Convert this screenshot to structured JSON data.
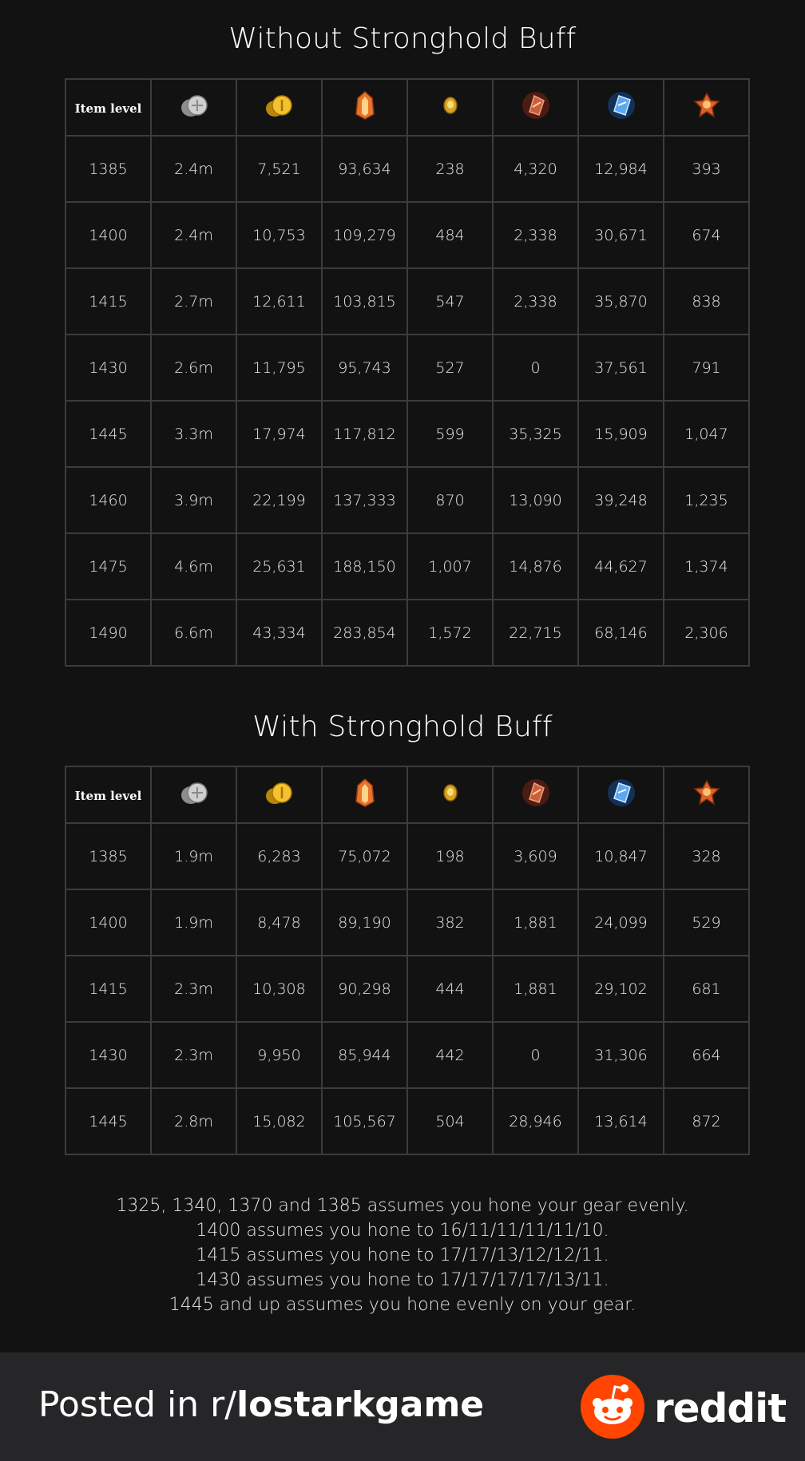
{
  "sections": [
    {
      "title": "Without Stronghold Buff",
      "header_label": "Item level",
      "icons": [
        "silver-coins-icon",
        "gold-coins-icon",
        "shard-pouch-icon",
        "leapstone-icon",
        "destruction-stone-icon",
        "guardian-stone-icon",
        "fusion-material-icon"
      ],
      "rows": [
        [
          "1385",
          "2.4m",
          "7,521",
          "93,634",
          "238",
          "4,320",
          "12,984",
          "393"
        ],
        [
          "1400",
          "2.4m",
          "10,753",
          "109,279",
          "484",
          "2,338",
          "30,671",
          "674"
        ],
        [
          "1415",
          "2.7m",
          "12,611",
          "103,815",
          "547",
          "2,338",
          "35,870",
          "838"
        ],
        [
          "1430",
          "2.6m",
          "11,795",
          "95,743",
          "527",
          "0",
          "37,561",
          "791"
        ],
        [
          "1445",
          "3.3m",
          "17,974",
          "117,812",
          "599",
          "35,325",
          "15,909",
          "1,047"
        ],
        [
          "1460",
          "3.9m",
          "22,199",
          "137,333",
          "870",
          "13,090",
          "39,248",
          "1,235"
        ],
        [
          "1475",
          "4.6m",
          "25,631",
          "188,150",
          "1,007",
          "14,876",
          "44,627",
          "1,374"
        ],
        [
          "1490",
          "6.6m",
          "43,334",
          "283,854",
          "1,572",
          "22,715",
          "68,146",
          "2,306"
        ]
      ]
    },
    {
      "title": "With Stronghold Buff",
      "header_label": "Item level",
      "icons": [
        "silver-coins-icon",
        "gold-coins-icon",
        "shard-pouch-icon",
        "leapstone-icon",
        "destruction-stone-icon",
        "guardian-stone-icon",
        "fusion-material-icon"
      ],
      "rows": [
        [
          "1385",
          "1.9m",
          "6,283",
          "75,072",
          "198",
          "3,609",
          "10,847",
          "328"
        ],
        [
          "1400",
          "1.9m",
          "8,478",
          "89,190",
          "382",
          "1,881",
          "24,099",
          "529"
        ],
        [
          "1415",
          "2.3m",
          "10,308",
          "90,298",
          "444",
          "1,881",
          "29,102",
          "681"
        ],
        [
          "1430",
          "2.3m",
          "9,950",
          "85,944",
          "442",
          "0",
          "31,306",
          "664"
        ],
        [
          "1445",
          "2.8m",
          "15,082",
          "105,567",
          "504",
          "28,946",
          "13,614",
          "872"
        ]
      ]
    }
  ],
  "notes": [
    "1325, 1340, 1370 and 1385 assumes you hone your gear evenly.",
    "1400 assumes you hone to 16/11/11/11/11/10.",
    "1415 assumes you hone to 17/17/13/12/12/11.",
    "1430 assumes you hone to 17/17/17/17/13/11.",
    "1445 and up assumes you hone evenly on your gear."
  ],
  "footer": {
    "posted_prefix": "Posted in ",
    "subreddit_prefix": "r/",
    "subreddit_name": "lostarkgame",
    "brand": "reddit"
  },
  "colors": {
    "background": "#121212",
    "grid": "#3c3c3c",
    "footer": "#262628",
    "reddit_orange": "#ff4500"
  }
}
